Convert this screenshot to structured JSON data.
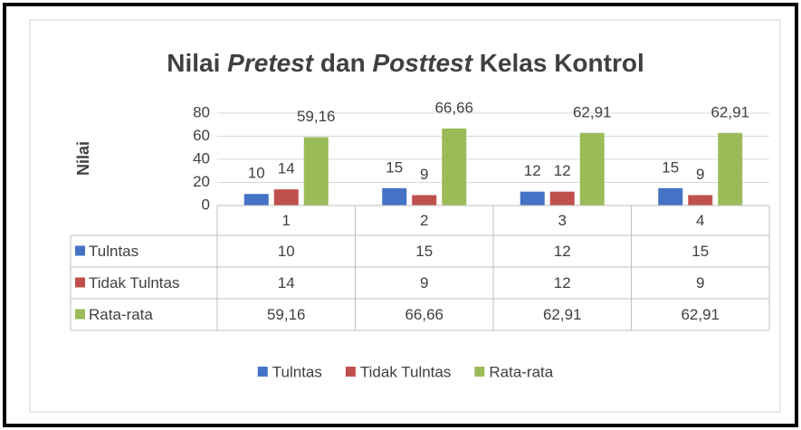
{
  "chart_data": {
    "type": "bar",
    "title": "Nilai Pretest dan Posttest Kelas Kontrol",
    "title_italic": [
      "Pretest",
      "Posttest"
    ],
    "y_label": "Nilai",
    "categories": [
      "1",
      "2",
      "3",
      "4"
    ],
    "series": [
      {
        "name": "Tulntas",
        "color": "#4472c4",
        "values": [
          10,
          15,
          12,
          15
        ]
      },
      {
        "name": "Tidak Tulntas",
        "color": "#c0504d",
        "values": [
          14,
          9,
          12,
          9
        ]
      },
      {
        "name": "Rata-rata",
        "color": "#9bbb59",
        "values": [
          59.16,
          66.66,
          62.91,
          62.91
        ],
        "value_labels": [
          "59,16",
          "66,66",
          "62,91",
          "62,91"
        ]
      }
    ],
    "ylim": [
      0,
      80
    ],
    "yticks": [
      0,
      20,
      40,
      60,
      80
    ],
    "grid": true,
    "legend": "bottom",
    "data_table": true
  }
}
